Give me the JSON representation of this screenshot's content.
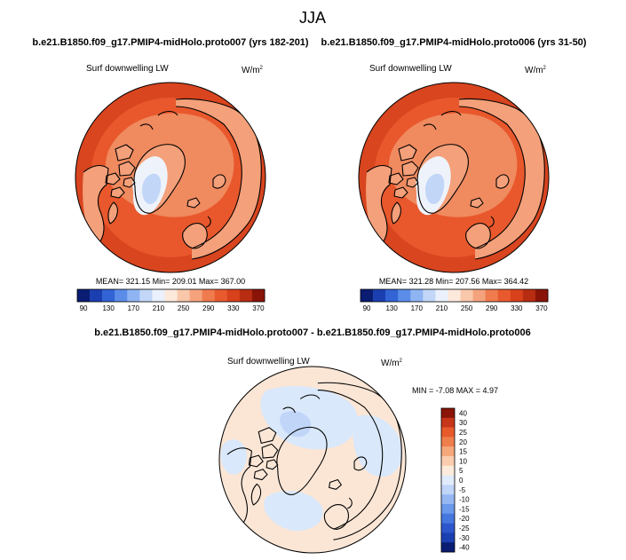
{
  "title": "JJA",
  "colors": {
    "abs_scale": [
      "#0a1d73",
      "#1b3fb0",
      "#3264d6",
      "#5b8ce8",
      "#8fb4f2",
      "#c2d7f7",
      "#eaf1fc",
      "#fde8dc",
      "#f9c8ab",
      "#f5a37d",
      "#ef7b4e",
      "#e85a2e",
      "#d8411c",
      "#b82d12",
      "#8a1408"
    ],
    "diff_scale": [
      "#0a1d73",
      "#1b3fb0",
      "#2d56cc",
      "#4677df",
      "#6a98ea",
      "#95b7f2",
      "#c0d5f8",
      "#e0ebfc",
      "#fdebdc",
      "#f9cdae",
      "#f5a87c",
      "#ef7e4d",
      "#e85a2a",
      "#c8361a",
      "#8a1408"
    ],
    "ocean_warm": "#e8582c",
    "ocean_outer": "#d8451f",
    "land_cold": "#f4a07a",
    "ice": "#eef3fb",
    "diff_base": "#fbe6d6",
    "diff_cool": "#d9e8fb"
  },
  "panels": {
    "left": {
      "case": "b.e21.B1850.f09_g17.PMIP4-midHolo.proto007 (yrs 182-201)",
      "variable": "Surf downwelling LW",
      "units": "W/m",
      "units_exp": "2",
      "stats": "MEAN= 321.15  Min= 209.01  Max= 367.00"
    },
    "right": {
      "case": "b.e21.B1850.f09_g17.PMIP4-midHolo.proto006 (yrs 31-50)",
      "variable": "Surf downwelling LW",
      "units": "W/m",
      "units_exp": "2",
      "stats": "MEAN= 321.28  Min= 207.56  Max= 364.42"
    },
    "diff": {
      "case": "b.e21.B1850.f09_g17.PMIP4-midHolo.proto007 - b.e21.B1850.f09_g17.PMIP4-midHolo.proto006",
      "variable": "Surf downwelling LW",
      "units": "W/m",
      "units_exp": "2",
      "stats": "MIN =  -7.08 MAX =   4.97"
    }
  },
  "chart_data": [
    {
      "type": "heatmap",
      "projection": "north-polar-stereographic",
      "title": "b.e21.B1850.f09_g17.PMIP4-midHolo.proto007 (yrs 182-201)",
      "variable": "Surf downwelling LW",
      "units": "W/m^2",
      "mean": 321.15,
      "min": 209.01,
      "max": 367.0,
      "colorbar_ticks": [
        90,
        130,
        170,
        210,
        250,
        290,
        330,
        370
      ],
      "colorbar_levels": [
        90,
        110,
        130,
        150,
        170,
        190,
        210,
        230,
        250,
        270,
        290,
        310,
        330,
        350,
        370
      ]
    },
    {
      "type": "heatmap",
      "projection": "north-polar-stereographic",
      "title": "b.e21.B1850.f09_g17.PMIP4-midHolo.proto006 (yrs 31-50)",
      "variable": "Surf downwelling LW",
      "units": "W/m^2",
      "mean": 321.28,
      "min": 207.56,
      "max": 364.42,
      "colorbar_ticks": [
        90,
        130,
        170,
        210,
        250,
        290,
        330,
        370
      ],
      "colorbar_levels": [
        90,
        110,
        130,
        150,
        170,
        190,
        210,
        230,
        250,
        270,
        290,
        310,
        330,
        350,
        370
      ]
    },
    {
      "type": "heatmap",
      "projection": "north-polar-stereographic",
      "title": "b.e21.B1850.f09_g17.PMIP4-midHolo.proto007 - b.e21.B1850.f09_g17.PMIP4-midHolo.proto006",
      "variable": "Surf downwelling LW",
      "units": "W/m^2",
      "min": -7.08,
      "max": 4.97,
      "colorbar_labels": [
        "40",
        "30",
        "25",
        "20",
        "15",
        "10",
        "5",
        "0",
        "-5",
        "-10",
        "-15",
        "-20",
        "-25",
        "-30",
        "-40"
      ]
    }
  ]
}
